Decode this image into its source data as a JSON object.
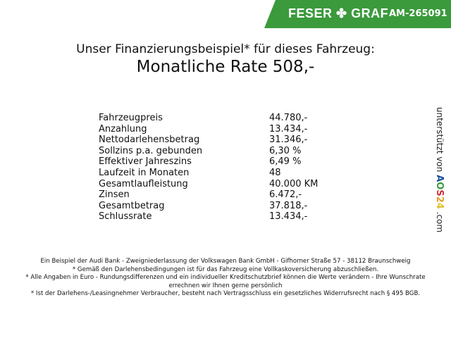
{
  "banner": {
    "brand": "FESER",
    "brand2": "GRAF",
    "code": "AM-265091",
    "color": "#3a9a3c"
  },
  "title": {
    "line1": "Unser Finanzierungsbeispiel* für dieses Fahrzeug:",
    "line2": "Monatliche Rate 508,-"
  },
  "rows": [
    {
      "label": "Fahrzeugpreis",
      "value": "44.780,-"
    },
    {
      "label": "Anzahlung",
      "value": "13.434,-"
    },
    {
      "label": "Nettodarlehensbetrag",
      "value": "31.346,-"
    },
    {
      "label": "Sollzins p.a. gebunden",
      "value": "6,30 %"
    },
    {
      "label": "Effektiver Jahreszins",
      "value": "6,49 %"
    },
    {
      "label": "Laufzeit in Monaten",
      "value": "48"
    },
    {
      "label": "Gesamtlaufleistung",
      "value": "40.000 KM"
    },
    {
      "label": "Zinsen",
      "value": "6.472,-"
    },
    {
      "label": "Gesamtbetrag",
      "value": "37.818,-"
    },
    {
      "label": "Schlussrate",
      "value": "13.434,-"
    }
  ],
  "side": {
    "text": "unterstützt von",
    "logo": "AOS24",
    ".com": ".com"
  },
  "footer": [
    "Ein Beispiel der Audi Bank - Zweigniederlassung der Volkswagen Bank GmbH - Gifhorner Straße 57 - 38112 Braunschweig",
    "* Gemäß den Darlehensbedingungen ist für das Fahrzeug eine Vollkaskoversicherung abzuschließen.",
    "* Alle Angaben in Euro - Rundungsdifferenzen und ein individueller Kreditschutzbrief können die Werte verändern - Ihre Wunschrate errechnen wir Ihnen gerne persönlich",
    "* Ist der Darlehens-/Leasingnehmer Verbraucher, besteht nach Vertragsschluss ein gesetzliches Widerrufsrecht nach § 495 BGB."
  ]
}
